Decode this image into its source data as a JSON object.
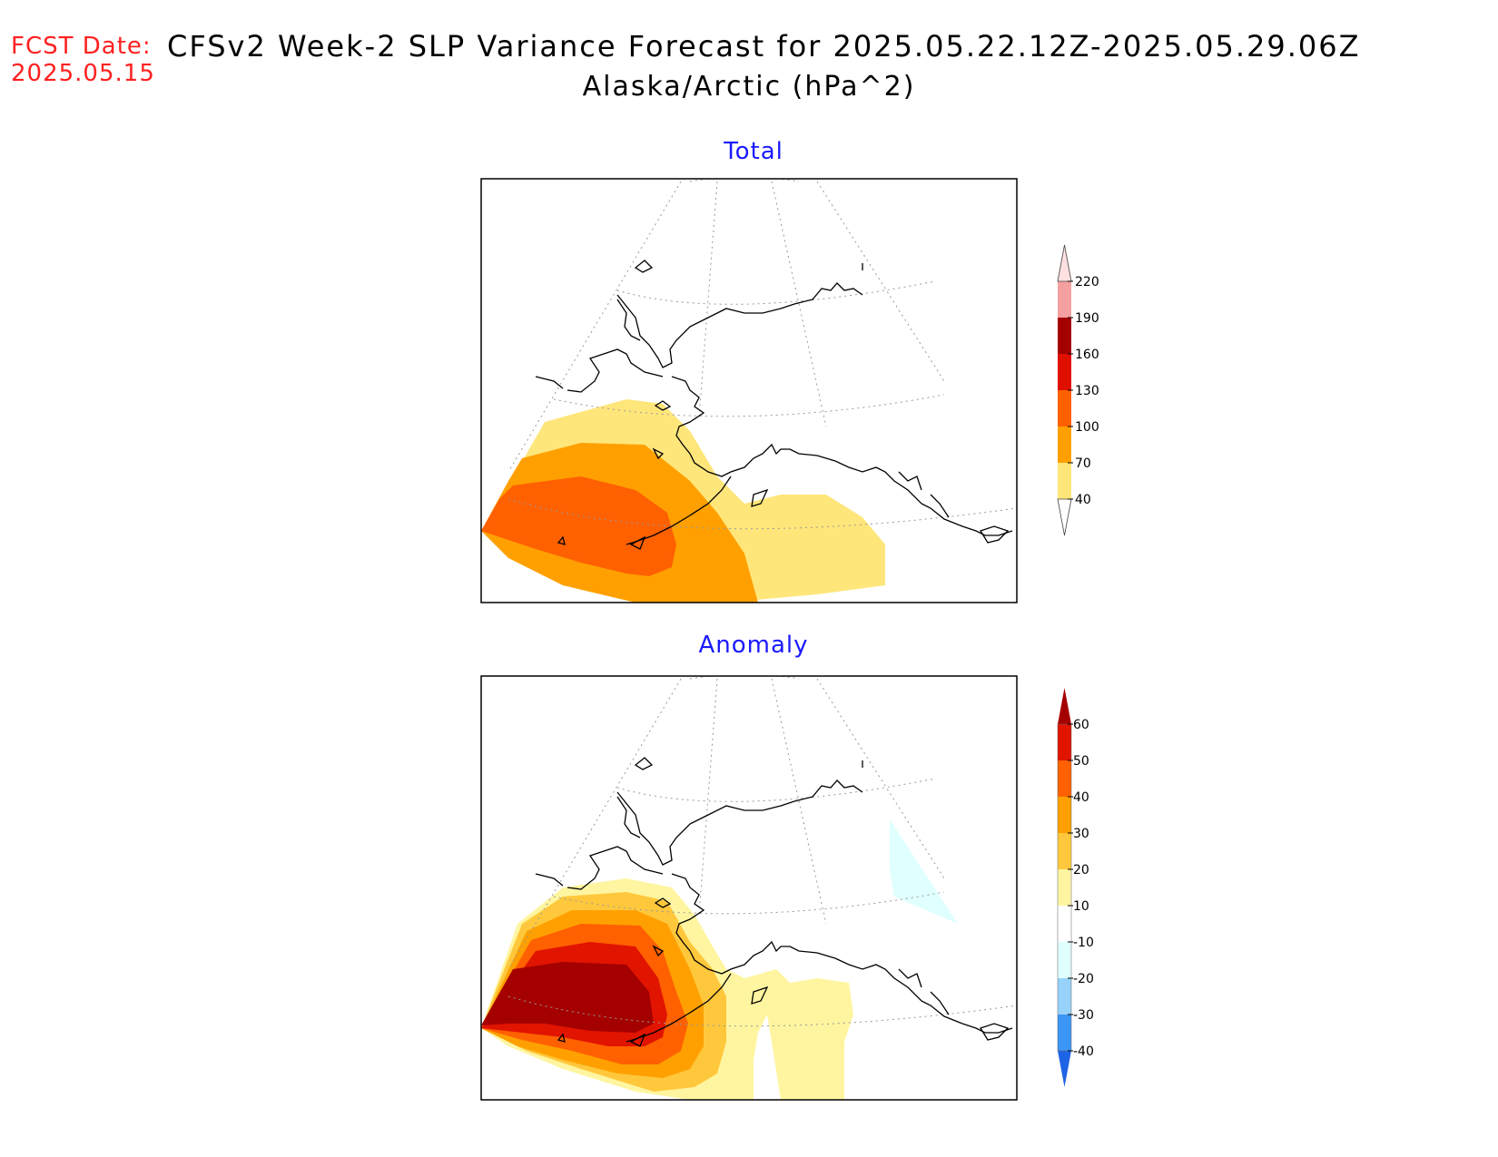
{
  "fcst": {
    "label": "FCST Date:",
    "date": "2025.05.15"
  },
  "title": "CFSv2 Week-2 SLP Variance Forecast for 2025.05.22.12Z-2025.05.29.06Z",
  "subtitle": "Alaska/Arctic (hPa^2)",
  "panels": [
    {
      "title": "Total",
      "colorbar": {
        "levels": [
          "40",
          "70",
          "100",
          "130",
          "160",
          "190",
          "220"
        ],
        "colors": [
          "#ffe67a",
          "#ffa000",
          "#ff6000",
          "#e01000",
          "#a50000",
          "#f4a0a0",
          "#ffe0e0"
        ]
      }
    },
    {
      "title": "Anomaly",
      "colorbar": {
        "levels": [
          "-40",
          "-30",
          "-20",
          "-10",
          "10",
          "20",
          "30",
          "40",
          "50",
          "60"
        ],
        "colors": [
          "#1e64e6",
          "#3c96f5",
          "#96d2fa",
          "#e0ffff",
          "#ffffff",
          "#fff5a0",
          "#ffc83c",
          "#ffa000",
          "#ff6000",
          "#e11400",
          "#a50000"
        ]
      }
    }
  ]
}
